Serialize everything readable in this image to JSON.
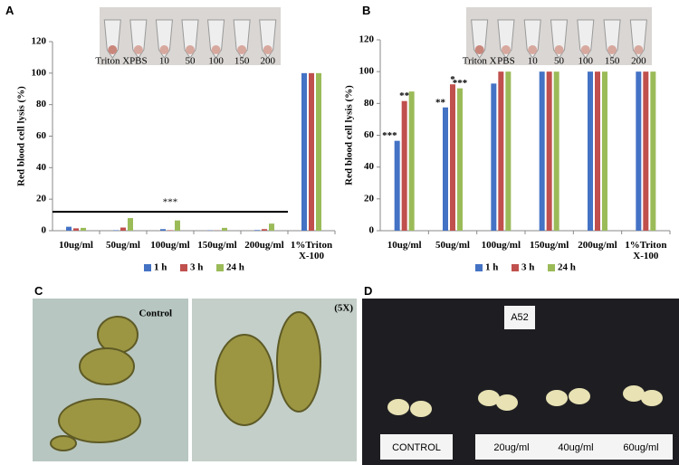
{
  "chart_data": [
    {
      "type": "bar",
      "panel": "A",
      "ylabel": "Red blood cell lysis (%)",
      "categories": [
        "10ug/ml",
        "50ug/ml",
        "100ug/ml",
        "150ug/ml",
        "200ug/ml",
        "1%Triton X-100"
      ],
      "series": [
        {
          "name": "1 h",
          "color": "#4472c4",
          "values": [
            2.5,
            0.3,
            1,
            0.2,
            0.4,
            100
          ]
        },
        {
          "name": "3 h",
          "color": "#c0504d",
          "values": [
            1.5,
            2,
            0.3,
            0.1,
            1,
            100
          ]
        },
        {
          "name": "24 h",
          "color": "#9bbb59",
          "values": [
            1.8,
            8,
            6.5,
            1.8,
            4.5,
            100
          ]
        }
      ],
      "ylim": [
        0,
        120
      ],
      "yticks": [
        0,
        20,
        40,
        60,
        80,
        100,
        120
      ],
      "bracket": {
        "text": "***",
        "y": 12,
        "from": 0,
        "to": 4
      },
      "tube_labels": [
        "Triton X",
        "PBS",
        "10",
        "50",
        "100",
        "150",
        "200"
      ]
    },
    {
      "type": "bar",
      "panel": "B",
      "ylabel": "Red blood cell lysis (%)",
      "categories": [
        "10ug/ml",
        "50ug/ml",
        "100ug/ml",
        "150ug/ml",
        "200ug/ml",
        "1%Triton X-100"
      ],
      "series": [
        {
          "name": "1 h",
          "color": "#4472c4",
          "values": [
            56.5,
            77.5,
            92.5,
            100,
            100,
            100
          ]
        },
        {
          "name": "3 h",
          "color": "#c0504d",
          "values": [
            81.5,
            92,
            100,
            100,
            100,
            100
          ]
        },
        {
          "name": "24 h",
          "color": "#9bbb59",
          "values": [
            87.5,
            89.5,
            100,
            100,
            100,
            100
          ]
        }
      ],
      "ylim": [
        0,
        120
      ],
      "yticks": [
        0,
        20,
        40,
        60,
        80,
        100,
        120
      ],
      "annotations": [
        {
          "text": "***",
          "category": 0,
          "series": 0
        },
        {
          "text": "**",
          "category": 0,
          "series": 1
        },
        {
          "text": "**",
          "category": 1,
          "series": 0
        },
        {
          "text": "*",
          "category": 1,
          "series": 1
        },
        {
          "text": "***",
          "category": 1,
          "series": 2
        }
      ],
      "tube_labels": [
        "Triton X",
        "PBS",
        "10",
        "50",
        "100",
        "150",
        "200"
      ]
    }
  ],
  "panel_c": {
    "letter": "C",
    "left_label": "Control",
    "right_label": "(5X)"
  },
  "panel_d": {
    "letter": "D",
    "tag": "A52",
    "labels": [
      "CONTROL",
      "20ug/ml",
      "40ug/ml",
      "60ug/ml"
    ]
  }
}
